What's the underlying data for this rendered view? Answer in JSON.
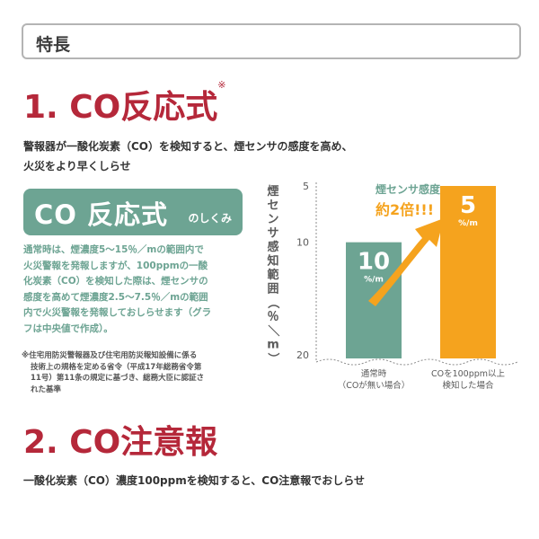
{
  "header": {
    "title": "特長"
  },
  "section1": {
    "title": "1. CO反応式",
    "title_mark": "※",
    "description_line1": "警報器が一酸化炭素（CO）を検知すると、煙センサの感度を高め、",
    "description_line2": "火災をより早くしらせ",
    "banner": {
      "main": "CO 反応式",
      "sub": "のしくみ",
      "color": "#6da493"
    },
    "body_lines": [
      "通常時は、煙濃度5～15％／mの範囲内で",
      "火災警報を発報しますが、100ppmの一酸",
      "化炭素（CO）を検知した際は、煙センサの",
      "感度を高めて煙濃度2.5～7.5％／mの範囲",
      "内で火災警報を発報しておしらせます（グラ",
      "フは中央値で作成）。"
    ],
    "footnote_lines": [
      "※住宅用防災警報器及び住宅用防災報知設備に係る",
      "技術上の規格を定める省令（平成17年総務省令第",
      "11号）第11条の規定に基づき、総務大臣に認証さ",
      "れた基準"
    ]
  },
  "chart_data": {
    "type": "bar",
    "ylabel": "煙センサ感知範囲（％／m）",
    "y_ticks": [
      "5",
      "10",
      "20"
    ],
    "ylim": [
      20,
      5
    ],
    "categories": [
      "通常時\n（COが無い場合）",
      "COを100ppm以上\n検知した場合"
    ],
    "values": [
      10,
      5
    ],
    "value_labels": [
      "10",
      "5"
    ],
    "value_unit": "%/m",
    "bar_colors": [
      "#6da493",
      "#f5a31e"
    ],
    "annotation_line1": "煙センサ感度",
    "annotation_line2": "約2倍!!!",
    "annotation_colors": {
      "title": "#6da493",
      "emphasis": "#f5a31e"
    }
  },
  "section2": {
    "title": "2. CO注意報",
    "description": "一酸化炭素（CO）濃度100ppmを検知すると、CO注意報でおしらせ"
  },
  "colors": {
    "accent_red": "#b5283a",
    "green": "#6da493",
    "orange": "#f5a31e"
  }
}
